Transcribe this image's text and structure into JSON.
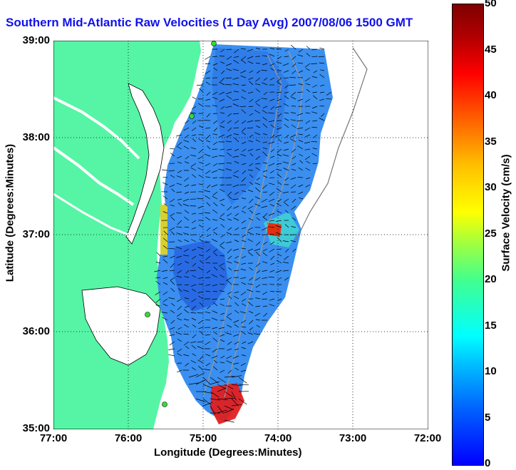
{
  "title": "Southern Mid-Atlantic Raw Velocities (1 Day Avg) 2007/08/06 1500 GMT",
  "xlabel": "Longitude (Degrees:Minutes)",
  "ylabel": "Latitude (Degrees:Minutes)",
  "colorbar_label": "Surface Velocity (cm/s)",
  "x_ticks": [
    "77:00",
    "76:00",
    "75:00",
    "74:00",
    "73:00",
    "72:00"
  ],
  "y_ticks": [
    "39:00",
    "38:00",
    "37:00",
    "36:00",
    "35:00"
  ],
  "colorbar_ticks": [
    "50",
    "45",
    "40",
    "35",
    "30",
    "25",
    "20",
    "15",
    "10",
    "5",
    "0"
  ],
  "colors": {
    "land": "#55f5a5",
    "title": "#1010ee",
    "current": "#3a8ff0"
  },
  "chart_data": {
    "type": "heatmap",
    "xlim": [
      -77,
      -72
    ],
    "ylim": [
      35,
      39
    ],
    "colorbar_range": [
      0,
      50
    ],
    "colorbar_units": "cm/s"
  }
}
